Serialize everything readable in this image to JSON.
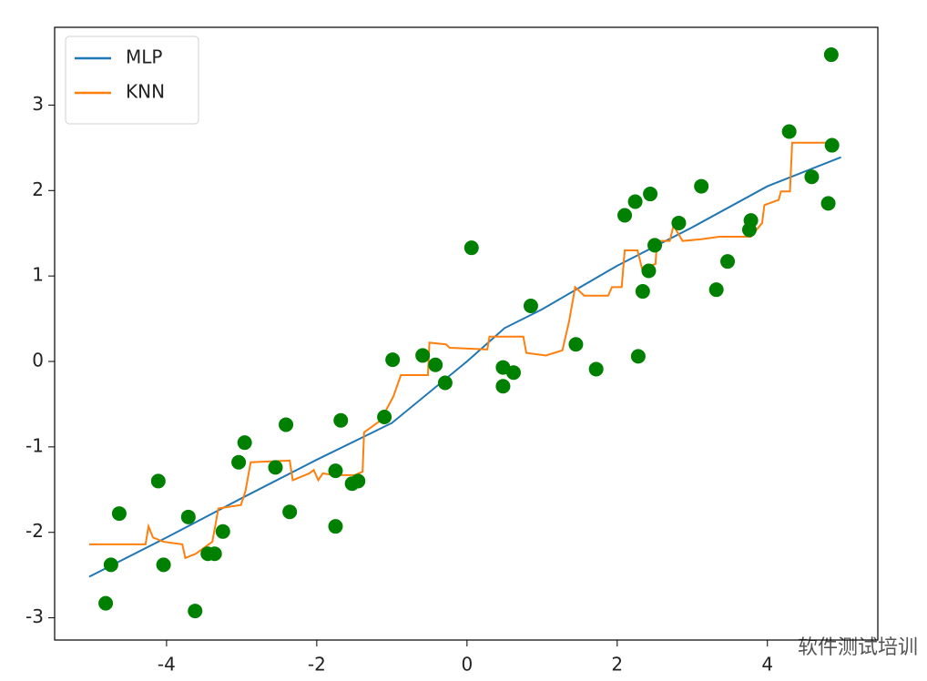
{
  "chart_data": {
    "type": "line",
    "xlim": [
      -5.49,
      5.47
    ],
    "ylim": [
      -3.26,
      3.91
    ],
    "xticks": [
      -4,
      -2,
      0,
      2,
      4
    ],
    "yticks": [
      -3,
      -2,
      -1,
      0,
      1,
      2,
      3
    ],
    "legend": "upper left",
    "series": [
      {
        "name": "MLP",
        "color": "#1f77b4",
        "x": [
          -5.03,
          -4,
          -3,
          -2,
          -1,
          0,
          0.5,
          1,
          2,
          3,
          4,
          4.98
        ],
        "values": [
          -2.52,
          -2.06,
          -1.6,
          -1.15,
          -0.72,
          0,
          0.39,
          0.61,
          1.12,
          1.57,
          2.05,
          2.39
        ]
      },
      {
        "name": "KNN",
        "color": "#ff7f0e",
        "x": [
          -5.03,
          -4.28,
          -4.24,
          -4.18,
          -4.04,
          -3.79,
          -3.75,
          -3.61,
          -3.39,
          -3.31,
          -3.01,
          -2.95,
          -2.88,
          -2.36,
          -2.32,
          -2.1,
          -2.04,
          -1.98,
          -1.92,
          -1.76,
          -1.49,
          -1.39,
          -1.37,
          -1.15,
          -0.98,
          -0.88,
          -0.52,
          -0.5,
          -0.28,
          -0.23,
          0.27,
          0.3,
          0.75,
          0.79,
          1.05,
          1.27,
          1.36,
          1.44,
          1.56,
          1.88,
          1.93,
          2.06,
          2.1,
          2.27,
          2.33,
          2.51,
          2.53,
          2.7,
          2.75,
          2.87,
          3.12,
          3.36,
          3.78,
          3.93,
          3.96,
          4.15,
          4.18,
          4.3,
          4.33,
          4.84
        ],
        "values": [
          -2.14,
          -2.14,
          -1.93,
          -2.06,
          -2.11,
          -2.14,
          -2.3,
          -2.25,
          -2.11,
          -1.72,
          -1.68,
          -1.52,
          -1.18,
          -1.16,
          -1.39,
          -1.31,
          -1.27,
          -1.39,
          -1.31,
          -1.33,
          -1.33,
          -1.29,
          -0.83,
          -0.69,
          -0.41,
          -0.16,
          -0.16,
          0.22,
          0.2,
          0.16,
          0.14,
          0.29,
          0.29,
          0.1,
          0.07,
          0.13,
          0.47,
          0.87,
          0.77,
          0.77,
          0.87,
          0.87,
          1.3,
          1.3,
          1.09,
          1.14,
          1.41,
          1.41,
          1.59,
          1.41,
          1.43,
          1.46,
          1.46,
          1.62,
          1.83,
          1.89,
          1.99,
          1.99,
          2.56,
          2.56
        ]
      }
    ],
    "points": {
      "color": "green",
      "x": [
        4.85,
        4.86,
        4.81,
        4.59,
        4.29,
        3.78,
        3.76,
        3.47,
        3.32,
        3.12,
        2.82,
        2.5,
        2.44,
        2.42,
        2.34,
        2.24,
        2.1,
        2.28,
        1.72,
        1.45,
        0.85,
        0.62,
        0.48,
        0.48,
        0.06,
        -0.29,
        -0.42,
        -0.59,
        -0.99,
        -1.1,
        -1.45,
        -1.53,
        -1.68,
        -1.75,
        -1.75,
        -2.36,
        -2.41,
        -2.55,
        -2.96,
        -3.04,
        -3.25,
        -3.36,
        -3.45,
        -3.62,
        -3.71,
        -4.04,
        -4.11,
        -4.63,
        -4.74,
        -4.81
      ],
      "values": [
        3.59,
        2.53,
        1.85,
        2.16,
        2.69,
        1.65,
        1.54,
        1.17,
        0.84,
        2.05,
        1.62,
        1.36,
        1.96,
        1.06,
        0.82,
        1.87,
        1.71,
        0.06,
        -0.09,
        0.2,
        0.65,
        -0.13,
        -0.07,
        -0.29,
        1.33,
        -0.25,
        -0.04,
        0.07,
        0.02,
        -0.65,
        -1.4,
        -1.43,
        -0.69,
        -1.28,
        -1.93,
        -1.76,
        -0.74,
        -1.24,
        -0.95,
        -1.18,
        -1.99,
        -2.25,
        -2.25,
        -2.92,
        -1.82,
        -2.38,
        -1.4,
        -1.78,
        -2.38,
        -2.83
      ]
    }
  },
  "watermark": "软件测试培训"
}
